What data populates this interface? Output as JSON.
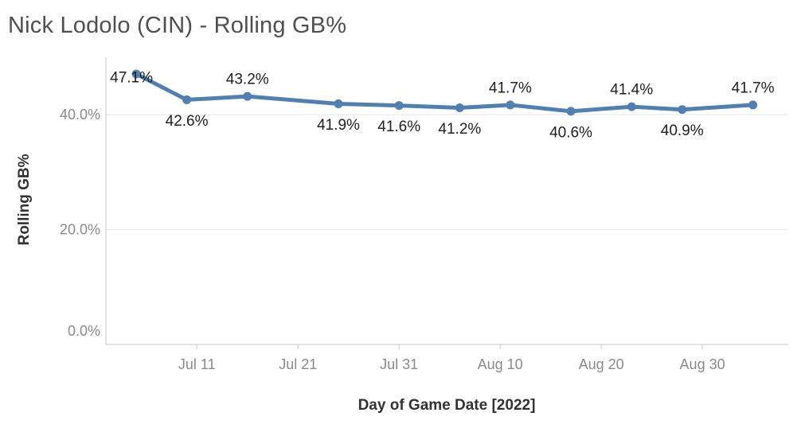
{
  "title": "Nick Lodolo (CIN) - Rolling GB%",
  "colors": {
    "line": "#5080b1",
    "marker": "#5080b1",
    "title_text": "#4f4f4f",
    "axis_title_text": "#323232",
    "tick_text": "#8a8a8a",
    "data_label_text": "#202020",
    "gridline": "#ececec",
    "axis_line": "#d7d7d7",
    "background": "#ffffff"
  },
  "chart_data": {
    "type": "line",
    "title": "Nick Lodolo (CIN) - Rolling GB%",
    "xlabel": "Day of Game Date [2022]",
    "ylabel": "Rolling GB%",
    "legend": "none",
    "grid": "horizontal",
    "marker_style": "filled-circle",
    "ylim": [
      0,
      50
    ],
    "x_domain_days": [
      2,
      69.5
    ],
    "x_ticks": [
      {
        "label": "Jul 11",
        "day": 11
      },
      {
        "label": "Jul 21",
        "day": 21
      },
      {
        "label": "Jul 31",
        "day": 31
      },
      {
        "label": "Aug 10",
        "day": 41
      },
      {
        "label": "Aug 20",
        "day": 51
      },
      {
        "label": "Aug 30",
        "day": 61
      }
    ],
    "y_ticks": [
      {
        "label": "0.0%",
        "value": 0
      },
      {
        "label": "20.0%",
        "value": 20
      },
      {
        "label": "40.0%",
        "value": 40
      }
    ],
    "points": [
      {
        "date": "Jul 5",
        "day": 5,
        "value": 47.1,
        "label": "47.1%",
        "label_side": "left"
      },
      {
        "date": "Jul 10",
        "day": 10,
        "value": 42.6,
        "label": "42.6%",
        "label_side": "below"
      },
      {
        "date": "Jul 16",
        "day": 16,
        "value": 43.2,
        "label": "43.2%",
        "label_side": "above"
      },
      {
        "date": "Jul 25",
        "day": 25,
        "value": 41.9,
        "label": "41.9%",
        "label_side": "below"
      },
      {
        "date": "Jul 31",
        "day": 31,
        "value": 41.6,
        "label": "41.6%",
        "label_side": "below"
      },
      {
        "date": "Aug 6",
        "day": 37,
        "value": 41.2,
        "label": "41.2%",
        "label_side": "below"
      },
      {
        "date": "Aug 11",
        "day": 42,
        "value": 41.7,
        "label": "41.7%",
        "label_side": "above"
      },
      {
        "date": "Aug 17",
        "day": 48,
        "value": 40.6,
        "label": "40.6%",
        "label_side": "below"
      },
      {
        "date": "Aug 23",
        "day": 54,
        "value": 41.4,
        "label": "41.4%",
        "label_side": "above"
      },
      {
        "date": "Aug 28",
        "day": 59,
        "value": 40.9,
        "label": "40.9%",
        "label_side": "below"
      },
      {
        "date": "Sep 4",
        "day": 66,
        "value": 41.7,
        "label": "41.7%",
        "label_side": "above"
      }
    ]
  }
}
